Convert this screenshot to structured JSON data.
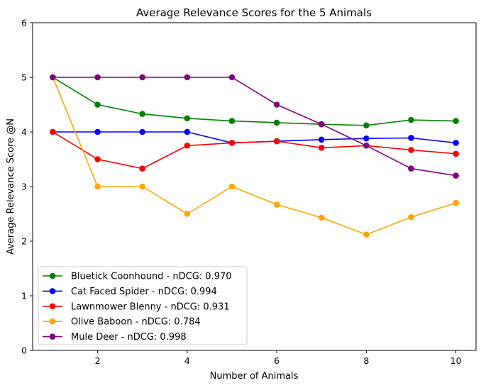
{
  "chart_data": {
    "type": "line",
    "title": "Average Relevance Scores for the 5 Animals",
    "xlabel": "Number of Animals",
    "ylabel": "Average Relevance Score @N",
    "xlim": [
      0.55,
      10.45
    ],
    "ylim": [
      0,
      6
    ],
    "xticks": [
      2,
      4,
      6,
      8,
      10
    ],
    "yticks": [
      0,
      1,
      2,
      3,
      4,
      5,
      6
    ],
    "grid": false,
    "legend_position": "lower-left",
    "x": [
      1,
      2,
      3,
      4,
      5,
      6,
      7,
      8,
      9,
      10
    ],
    "series": [
      {
        "name": "Bluetick Coonhound - nDCG: 0.970",
        "color": "#008000",
        "values": [
          5.0,
          4.5,
          4.33,
          4.25,
          4.2,
          4.17,
          4.14,
          4.12,
          4.22,
          4.2
        ]
      },
      {
        "name": "Cat Faced Spider - nDCG: 0.994",
        "color": "#0000ff",
        "values": [
          4.0,
          4.0,
          4.0,
          4.0,
          3.8,
          3.83,
          3.86,
          3.88,
          3.89,
          3.8
        ]
      },
      {
        "name": "Lawnmower Blenny - nDCG: 0.931",
        "color": "#ff0000",
        "values": [
          4.0,
          3.5,
          3.33,
          3.75,
          3.8,
          3.83,
          3.71,
          3.75,
          3.67,
          3.6
        ]
      },
      {
        "name": "Olive Baboon - nDCG: 0.784",
        "color": "#ffa500",
        "values": [
          5.0,
          3.0,
          3.0,
          2.5,
          3.0,
          2.67,
          2.43,
          2.12,
          2.44,
          2.7
        ]
      },
      {
        "name": "Mule Deer - nDCG: 0.998",
        "color": "#800080",
        "values": [
          5.0,
          5.0,
          5.0,
          5.0,
          5.0,
          4.5,
          4.14,
          3.75,
          3.33,
          3.2
        ]
      }
    ]
  }
}
